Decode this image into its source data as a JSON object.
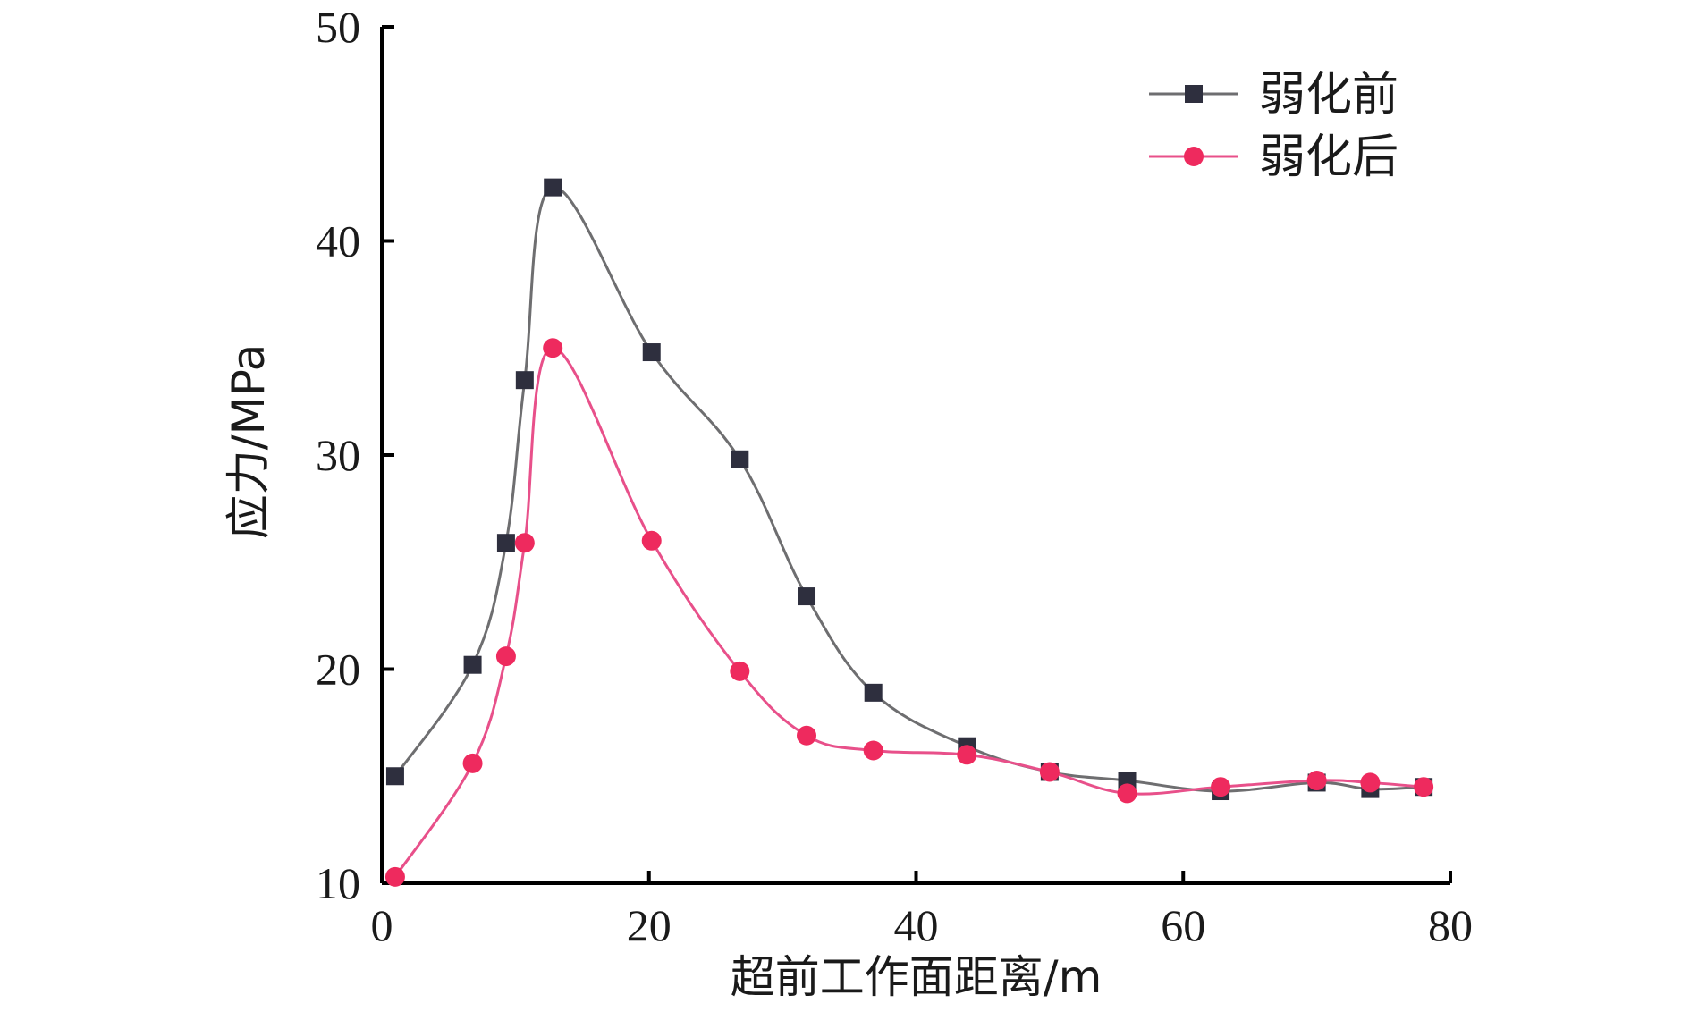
{
  "chart_data": {
    "type": "line",
    "xlabel": "超前工作面距离/m",
    "ylabel": "应力/MPa",
    "xlim": [
      0,
      80
    ],
    "ylim": [
      10,
      50
    ],
    "x_ticks": [
      "0",
      "20",
      "40",
      "60",
      "80"
    ],
    "y_ticks": [
      "10",
      "20",
      "30",
      "40",
      "50"
    ],
    "legend_position": "top-right",
    "grid": false,
    "series": [
      {
        "name": "弱化前",
        "color": "#6e6e70",
        "marker": "square",
        "marker_color": "#2e2f3e",
        "points": [
          [
            1,
            15.0
          ],
          [
            6.8,
            20.2
          ],
          [
            9.3,
            25.9
          ],
          [
            10.7,
            33.5
          ],
          [
            12.8,
            42.5
          ],
          [
            20.2,
            34.8
          ],
          [
            26.8,
            29.8
          ],
          [
            31.8,
            23.4
          ],
          [
            36.8,
            18.9
          ],
          [
            43.8,
            16.4
          ],
          [
            50.0,
            15.2
          ],
          [
            55.8,
            14.8
          ],
          [
            62.8,
            14.3
          ],
          [
            70.0,
            14.7
          ],
          [
            74.0,
            14.4
          ],
          [
            78.0,
            14.5
          ]
        ]
      },
      {
        "name": "弱化后",
        "color": "#e8508a",
        "marker": "circle",
        "marker_color": "#ee2a5e",
        "points": [
          [
            1,
            10.3
          ],
          [
            6.8,
            15.6
          ],
          [
            9.3,
            20.6
          ],
          [
            10.7,
            25.9
          ],
          [
            12.8,
            35.0
          ],
          [
            20.2,
            26.0
          ],
          [
            26.8,
            19.9
          ],
          [
            31.8,
            16.9
          ],
          [
            36.8,
            16.2
          ],
          [
            43.8,
            16.0
          ],
          [
            50.0,
            15.2
          ],
          [
            55.8,
            14.2
          ],
          [
            62.8,
            14.5
          ],
          [
            70.0,
            14.8
          ],
          [
            74.0,
            14.7
          ],
          [
            78.0,
            14.5
          ]
        ]
      }
    ]
  }
}
